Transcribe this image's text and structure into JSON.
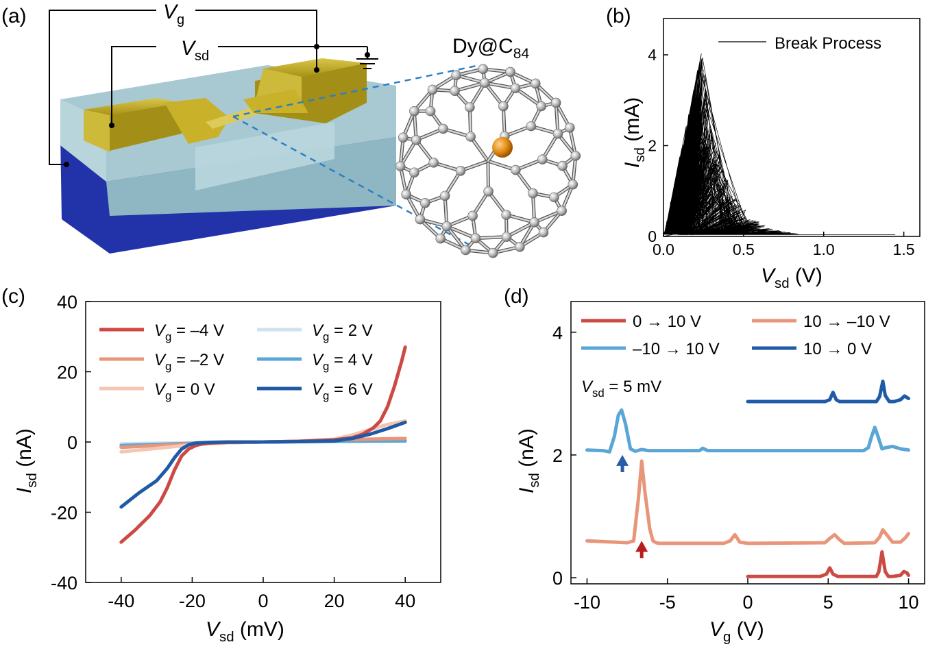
{
  "panels": {
    "a": {
      "label": "(a)",
      "vg_label": "V",
      "vg_sub": "g",
      "vsd_label": "V",
      "vsd_sub": "sd",
      "molecule_label": "Dy@C",
      "molecule_sub": "84"
    },
    "b": {
      "label": "(b)"
    },
    "c": {
      "label": "(c)"
    },
    "d": {
      "label": "(d)",
      "annotation_main": "V",
      "annotation_sub": "sd",
      "annotation_rest": " = 5 mV"
    }
  },
  "colors": {
    "gold": "#c9b12a",
    "substrate_glass": "#a8c9d2",
    "substrate_blue": "#2233aa",
    "vg_m4": "#cc4a43",
    "vg_m2": "#e8957a",
    "vg_0": "#f4c6b3",
    "vg_2": "#cfe2ef",
    "vg_4": "#5aa6d6",
    "vg_6": "#1f5aa6",
    "arrow_blue": "#2a5ca8",
    "arrow_red": "#b81c1c"
  },
  "chart_data": [
    {
      "panel": "b",
      "type": "line",
      "title": "",
      "xlabel": "V",
      "xlabel_sub": "sd",
      "xlabel_rest": " (V)",
      "ylabel": "I",
      "ylabel_sub": "sd",
      "ylabel_rest": " (mA)",
      "xlim": [
        0,
        1.6
      ],
      "ylim": [
        0,
        4.8
      ],
      "xticks": [
        0.0,
        0.5,
        1.0,
        1.5
      ],
      "xtick_labels": [
        "0.0",
        "0.5",
        "1.0",
        "1.5"
      ],
      "yticks": [
        0,
        2,
        4
      ],
      "ytick_labels": [
        "0",
        "2",
        "4"
      ],
      "legend": [
        "Break Process"
      ],
      "legend_position": "top-right",
      "series": [
        {
          "name": "Break Process",
          "peak_x": 0.24,
          "peak_y": 4.15,
          "tail_end_x": 1.45,
          "color": "#000000"
        }
      ]
    },
    {
      "panel": "c",
      "type": "line",
      "xlabel": "V",
      "xlabel_sub": "sd",
      "xlabel_rest": " (mV)",
      "ylabel": "I",
      "ylabel_sub": "sd",
      "ylabel_rest": " (nA)",
      "xlim": [
        -50,
        50
      ],
      "ylim": [
        -40,
        40
      ],
      "xticks": [
        -40,
        -20,
        0,
        20,
        40
      ],
      "xtick_labels": [
        "-40",
        "-20",
        "0",
        "20",
        "40"
      ],
      "yticks": [
        -40,
        -20,
        0,
        20,
        40
      ],
      "ytick_labels": [
        "-40",
        "-20",
        "0",
        "20",
        "40"
      ],
      "legend_position": "top-left",
      "series": [
        {
          "name": "V",
          "sub": "g",
          "rest": " = –4 V",
          "color": "#cc4a43",
          "x": [
            -40,
            -36,
            -32,
            -29,
            -27,
            -25,
            -23,
            -21,
            -19,
            -17,
            -15,
            -10,
            0,
            10,
            20,
            25,
            28,
            31,
            33,
            35,
            37,
            39,
            40
          ],
          "y": [
            -28.5,
            -25,
            -21,
            -17,
            -13,
            -8,
            -4,
            -2,
            -1,
            -0.5,
            -0.3,
            -0.1,
            0,
            0.2,
            0.6,
            1.2,
            2.2,
            4,
            6,
            10,
            16,
            23,
            27
          ]
        },
        {
          "name": "V",
          "sub": "g",
          "rest": " = –2 V",
          "color": "#e8957a",
          "x": [
            -40,
            -30,
            -20,
            -10,
            0,
            10,
            20,
            30,
            40
          ],
          "y": [
            -1.5,
            -1,
            -0.5,
            -0.2,
            0,
            0.2,
            0.5,
            0.8,
            1
          ]
        },
        {
          "name": "V",
          "sub": "g",
          "rest": " = 0 V",
          "color": "#f4c6b3",
          "x": [
            -40,
            -30,
            -20,
            -10,
            0,
            10,
            20,
            25,
            30,
            35,
            40
          ],
          "y": [
            -2.8,
            -1.8,
            -0.8,
            -0.2,
            0,
            0.2,
            0.8,
            2,
            3.5,
            5,
            6
          ]
        },
        {
          "name": "V",
          "sub": "g",
          "rest": " = 2 V",
          "color": "#cfe2ef",
          "x": [
            -40,
            -20,
            0,
            20,
            40
          ],
          "y": [
            -0.5,
            -0.2,
            0,
            0.2,
            0.4
          ]
        },
        {
          "name": "V",
          "sub": "g",
          "rest": " = 4 V",
          "color": "#5aa6d6",
          "x": [
            -40,
            -20,
            0,
            20,
            40
          ],
          "y": [
            -1,
            -0.4,
            0,
            0.2,
            0.3
          ]
        },
        {
          "name": "V",
          "sub": "g",
          "rest": " = 6 V",
          "color": "#1f5aa6",
          "x": [
            -40,
            -35,
            -30,
            -27,
            -25,
            -23,
            -21,
            -19,
            -15,
            -10,
            0,
            10,
            20,
            25,
            30,
            35,
            40
          ],
          "y": [
            -18.5,
            -14.5,
            -11,
            -7.5,
            -4.5,
            -2,
            -0.8,
            -0.3,
            -0.1,
            0,
            0,
            0.1,
            0.3,
            1,
            2.2,
            3.8,
            5.6
          ]
        }
      ]
    },
    {
      "panel": "d",
      "type": "line",
      "xlabel": "V",
      "xlabel_sub": "g",
      "xlabel_rest": " (V)",
      "ylabel": "I",
      "ylabel_sub": "sd",
      "ylabel_rest": " (nA)",
      "xlim": [
        -11,
        11
      ],
      "ylim": [
        -0.1,
        4.5
      ],
      "xticks": [
        -10,
        -5,
        0,
        5,
        10
      ],
      "xtick_labels": [
        "-10",
        "-5",
        "0",
        "5",
        "10"
      ],
      "yticks": [
        0,
        2,
        4
      ],
      "ytick_labels": [
        "0",
        "2",
        "4"
      ],
      "legend_position": "top",
      "series": [
        {
          "name": "0 → 10 V",
          "color": "#cc4a43",
          "x": [
            0,
            4.5,
            4.9,
            5.1,
            5.3,
            5.6,
            6,
            8,
            8.15,
            8.35,
            8.55,
            8.75,
            9,
            9.5,
            9.7,
            9.9,
            10
          ],
          "y": [
            0.02,
            0.02,
            0.06,
            0.16,
            0.06,
            0.02,
            0.02,
            0.02,
            0.1,
            0.42,
            0.1,
            0.02,
            0.02,
            0.04,
            0.1,
            0.08,
            0.04
          ]
        },
        {
          "name": "10 → –10 V",
          "color": "#e8957a",
          "x": [
            -10,
            -7.5,
            -7.1,
            -6.8,
            -6.6,
            -6.4,
            -6.1,
            -5.9,
            -5.7,
            -5.5,
            -5,
            -1.5,
            -1.1,
            -0.8,
            -0.5,
            0,
            4.8,
            5.1,
            5.4,
            5.7,
            6,
            7.9,
            8.2,
            8.4,
            8.7,
            9,
            9.5,
            9.8,
            10
          ],
          "y": [
            0.6,
            0.57,
            0.6,
            1.3,
            1.9,
            1.4,
            0.8,
            0.6,
            0.57,
            0.56,
            0.56,
            0.56,
            0.6,
            0.7,
            0.58,
            0.56,
            0.57,
            0.64,
            0.7,
            0.62,
            0.56,
            0.57,
            0.66,
            0.78,
            0.68,
            0.58,
            0.58,
            0.65,
            0.72
          ]
        },
        {
          "name": "–10 → 10 V",
          "color": "#5aa6d6",
          "x": [
            -10,
            -9,
            -8.6,
            -8.3,
            -8.05,
            -7.85,
            -7.6,
            -7.3,
            -7,
            -6.6,
            -6.2,
            -5,
            -3,
            -2.8,
            -2.5,
            0,
            7.2,
            7.5,
            7.7,
            7.9,
            8.1,
            8.35,
            8.6,
            9,
            9.5,
            10
          ],
          "y": [
            2.08,
            2.07,
            2.05,
            2.3,
            2.65,
            2.73,
            2.5,
            2.1,
            2.06,
            2.09,
            2.07,
            2.07,
            2.07,
            2.11,
            2.07,
            2.07,
            2.07,
            2.12,
            2.3,
            2.45,
            2.3,
            2.1,
            2.12,
            2.14,
            2.1,
            2.08
          ]
        },
        {
          "name": "10 → 0 V",
          "color": "#1f5aa6",
          "x": [
            0,
            4.8,
            5.1,
            5.3,
            5.5,
            5.7,
            6,
            8,
            8.2,
            8.4,
            8.55,
            8.8,
            9.1,
            9.5,
            9.75,
            10
          ],
          "y": [
            2.87,
            2.87,
            2.9,
            3.02,
            2.9,
            2.87,
            2.87,
            2.87,
            2.95,
            3.2,
            2.97,
            2.87,
            2.87,
            2.9,
            2.96,
            2.92
          ]
        }
      ],
      "arrows": [
        {
          "x": -7.8,
          "y_tip": 2.0,
          "y_tail": 1.72,
          "color": "#2a5ca8"
        },
        {
          "x": -6.6,
          "y_tip": 0.6,
          "y_tail": 0.32,
          "color": "#b81c1c"
        }
      ]
    }
  ]
}
